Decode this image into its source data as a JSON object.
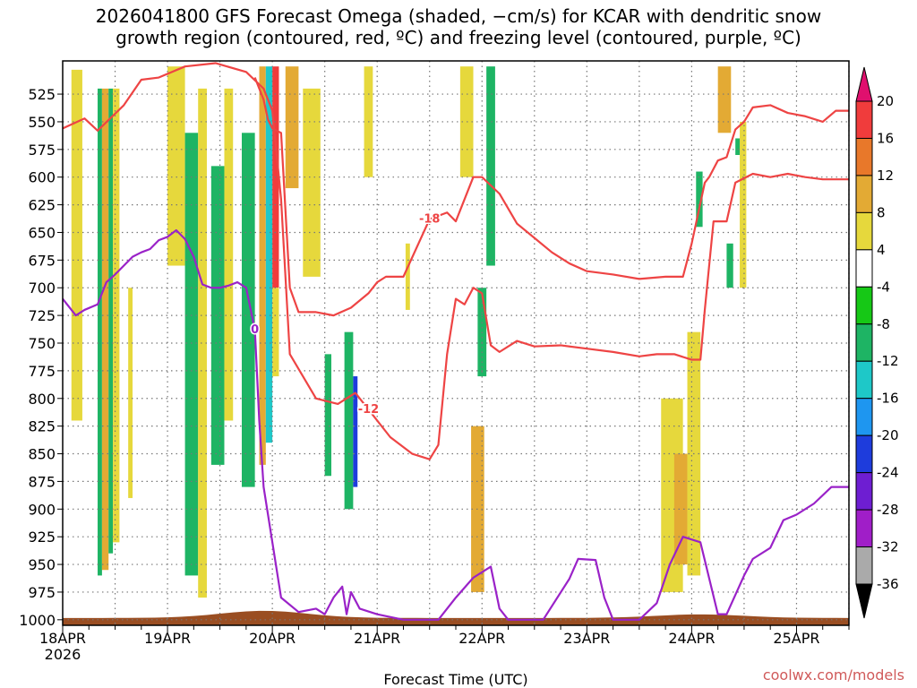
{
  "title": "2026041800 GFS Forecast Omega (shaded, −cm/s) for KCAR with dendritic snow\ngrowth region (contoured, red, ºC) and freezing level (contoured, purple, ºC)",
  "watermark": "coolwx.com/models",
  "chart_data": {
    "type": "heatmap",
    "title": "2026041800 GFS Forecast Omega (shaded, −cm/s) for KCAR with dendritic snow growth region (contoured, red, ºC) and freezing level (contoured, purple, ºC)",
    "xlabel": "Forecast Time (UTC)",
    "ylabel": "",
    "x_range_hours": [
      0,
      180
    ],
    "x_ticks": [
      {
        "hour": 0,
        "label": "18APR",
        "sublabel": "2026"
      },
      {
        "hour": 24,
        "label": "19APR"
      },
      {
        "hour": 48,
        "label": "20APR"
      },
      {
        "hour": 72,
        "label": "21APR"
      },
      {
        "hour": 96,
        "label": "22APR"
      },
      {
        "hour": 120,
        "label": "23APR"
      },
      {
        "hour": 144,
        "label": "24APR"
      },
      {
        "hour": 168,
        "label": "25APR"
      }
    ],
    "y_range_hpa": [
      1005,
      495
    ],
    "y_ticks": [
      "525",
      "550",
      "575",
      "600",
      "625",
      "650",
      "675",
      "700",
      "725",
      "750",
      "775",
      "800",
      "825",
      "850",
      "875",
      "900",
      "925",
      "950",
      "975",
      "1000"
    ],
    "colorbar": {
      "levels": [
        "20",
        "16",
        "12",
        "8",
        "4",
        "-4",
        "-8",
        "-12",
        "-16",
        "-20",
        "-24",
        "-28",
        "-32",
        "-36"
      ],
      "colors": [
        "#e0106e",
        "#f03c3c",
        "#e8782a",
        "#e3aa34",
        "#e6d83c",
        "#ffffff",
        "#16c816",
        "#1eb464",
        "#1ec8c8",
        "#1e96f0",
        "#1e3cdc",
        "#6e1ed2",
        "#a01ec8",
        "#aaaaaa",
        "#000000"
      ]
    },
    "omega_cells": [
      {
        "t0": 2,
        "t1": 4.5,
        "p0": 503,
        "p1": 820,
        "value": 6
      },
      {
        "t0": 8,
        "t1": 9,
        "p0": 520,
        "p1": 960,
        "value": -9
      },
      {
        "t0": 9,
        "t1": 10.5,
        "p0": 520,
        "p1": 955,
        "value": 10
      },
      {
        "t0": 10.5,
        "t1": 11.5,
        "p0": 520,
        "p1": 940,
        "value": -10
      },
      {
        "t0": 11.5,
        "t1": 13,
        "p0": 520,
        "p1": 930,
        "value": 8
      },
      {
        "t0": 15,
        "t1": 16,
        "p0": 700,
        "p1": 890,
        "value": 6
      },
      {
        "t0": 24,
        "t1": 28,
        "p0": 500,
        "p1": 680,
        "value": 5
      },
      {
        "t0": 28,
        "t1": 31,
        "p0": 560,
        "p1": 960,
        "value": -10
      },
      {
        "t0": 31,
        "t1": 33,
        "p0": 520,
        "p1": 980,
        "value": 6
      },
      {
        "t0": 34,
        "t1": 37,
        "p0": 590,
        "p1": 860,
        "value": -9
      },
      {
        "t0": 37,
        "t1": 39,
        "p0": 520,
        "p1": 820,
        "value": 7
      },
      {
        "t0": 41,
        "t1": 44,
        "p0": 560,
        "p1": 880,
        "value": -8
      },
      {
        "t0": 45,
        "t1": 46.5,
        "p0": 500,
        "p1": 860,
        "value": 10
      },
      {
        "t0": 46.5,
        "t1": 48,
        "p0": 500,
        "p1": 840,
        "value": -14
      },
      {
        "t0": 48,
        "t1": 49.5,
        "p0": 500,
        "p1": 700,
        "value": 18
      },
      {
        "t0": 48,
        "t1": 49.5,
        "p0": 700,
        "p1": 780,
        "value": 6
      },
      {
        "t0": 51,
        "t1": 54,
        "p0": 500,
        "p1": 610,
        "value": 9
      },
      {
        "t0": 55,
        "t1": 59,
        "p0": 520,
        "p1": 690,
        "value": 5
      },
      {
        "t0": 60,
        "t1": 61.5,
        "p0": 760,
        "p1": 870,
        "value": -11
      },
      {
        "t0": 64.5,
        "t1": 66.5,
        "p0": 740,
        "p1": 900,
        "value": -9
      },
      {
        "t0": 66.5,
        "t1": 67.5,
        "p0": 780,
        "p1": 880,
        "value": -20
      },
      {
        "t0": 69,
        "t1": 71,
        "p0": 500,
        "p1": 600,
        "value": 5
      },
      {
        "t0": 78.5,
        "t1": 79.5,
        "p0": 660,
        "p1": 720,
        "value": 5
      },
      {
        "t0": 91,
        "t1": 94,
        "p0": 500,
        "p1": 600,
        "value": 5
      },
      {
        "t0": 93.5,
        "t1": 96.5,
        "p0": 825,
        "p1": 975,
        "value": 9
      },
      {
        "t0": 95,
        "t1": 97,
        "p0": 700,
        "p1": 780,
        "value": -9
      },
      {
        "t0": 97,
        "t1": 99,
        "p0": 500,
        "p1": 680,
        "value": -8
      },
      {
        "t0": 137,
        "t1": 142,
        "p0": 800,
        "p1": 975,
        "value": 6
      },
      {
        "t0": 140,
        "t1": 143,
        "p0": 850,
        "p1": 950,
        "value": 9
      },
      {
        "t0": 143,
        "t1": 146,
        "p0": 740,
        "p1": 960,
        "value": 6
      },
      {
        "t0": 145,
        "t1": 146.5,
        "p0": 595,
        "p1": 645,
        "value": -9
      },
      {
        "t0": 150,
        "t1": 153,
        "p0": 500,
        "p1": 560,
        "value": 9
      },
      {
        "t0": 152,
        "t1": 153.5,
        "p0": 660,
        "p1": 700,
        "value": -9
      },
      {
        "t0": 155,
        "t1": 156.5,
        "p0": 550,
        "p1": 700,
        "value": 6
      },
      {
        "t0": 154,
        "t1": 155,
        "p0": 565,
        "p1": 580,
        "value": -9
      }
    ],
    "dgz_contours": [
      {
        "label": "-12",
        "points": [
          [
            0,
            556
          ],
          [
            5,
            547
          ],
          [
            8,
            558
          ],
          [
            14,
            535
          ],
          [
            18,
            512
          ],
          [
            22,
            510
          ],
          [
            28,
            500
          ],
          [
            35,
            497
          ],
          [
            42,
            505
          ],
          [
            46,
            520
          ],
          [
            48,
            540
          ],
          [
            50,
            620
          ],
          [
            52,
            760
          ],
          [
            58,
            800
          ],
          [
            63,
            805
          ],
          [
            67,
            795
          ],
          [
            70,
            810
          ],
          [
            75,
            835
          ],
          [
            80,
            850
          ],
          [
            84,
            855
          ],
          [
            86,
            842
          ],
          [
            88,
            760
          ],
          [
            90,
            710
          ],
          [
            92,
            715
          ],
          [
            94,
            700
          ],
          [
            96,
            705
          ],
          [
            98,
            752
          ],
          [
            100,
            758
          ],
          [
            104,
            748
          ],
          [
            108,
            753
          ],
          [
            114,
            752
          ],
          [
            120,
            755
          ],
          [
            126,
            758
          ],
          [
            132,
            762
          ],
          [
            136,
            760
          ],
          [
            140,
            760
          ],
          [
            144,
            765
          ],
          [
            146,
            765
          ],
          [
            147,
            720
          ],
          [
            149,
            640
          ],
          [
            152,
            640
          ],
          [
            154,
            605
          ],
          [
            158,
            597
          ],
          [
            162,
            600
          ],
          [
            166,
            597
          ],
          [
            170,
            600
          ],
          [
            174,
            602
          ],
          [
            180,
            602
          ]
        ]
      },
      {
        "label": "-18",
        "points": [
          [
            44,
            510
          ],
          [
            46,
            530
          ],
          [
            47,
            548
          ],
          [
            48,
            556
          ],
          [
            50,
            560
          ],
          [
            52,
            700
          ],
          [
            54,
            722
          ],
          [
            58,
            722
          ],
          [
            62,
            725
          ],
          [
            66,
            718
          ],
          [
            70,
            705
          ],
          [
            72,
            695
          ],
          [
            74,
            690
          ],
          [
            78,
            690
          ],
          [
            84,
            638
          ],
          [
            88,
            632
          ],
          [
            90,
            640
          ],
          [
            94,
            600
          ],
          [
            96,
            600
          ],
          [
            100,
            615
          ],
          [
            104,
            642
          ],
          [
            108,
            655
          ],
          [
            112,
            668
          ],
          [
            116,
            678
          ],
          [
            120,
            685
          ],
          [
            126,
            688
          ],
          [
            132,
            692
          ],
          [
            138,
            690
          ],
          [
            142,
            690
          ],
          [
            144,
            660
          ],
          [
            147,
            605
          ],
          [
            148,
            600
          ],
          [
            150,
            585
          ],
          [
            152,
            582
          ],
          [
            154,
            557
          ],
          [
            156,
            550
          ],
          [
            158,
            537
          ],
          [
            162,
            535
          ],
          [
            166,
            542
          ],
          [
            170,
            545
          ],
          [
            174,
            550
          ],
          [
            177,
            540
          ],
          [
            180,
            540
          ]
        ]
      }
    ],
    "freezing_contours": [
      {
        "label": "0",
        "points": [
          [
            0,
            710
          ],
          [
            3,
            725
          ],
          [
            5,
            720
          ],
          [
            8,
            715
          ],
          [
            10,
            695
          ],
          [
            12,
            688
          ],
          [
            14,
            680
          ],
          [
            16,
            672
          ],
          [
            18,
            668
          ],
          [
            20,
            665
          ],
          [
            22,
            657
          ],
          [
            24,
            654
          ],
          [
            26,
            648
          ],
          [
            28,
            656
          ],
          [
            30,
            672
          ],
          [
            32,
            697
          ],
          [
            34,
            700
          ],
          [
            36,
            700
          ],
          [
            38,
            698
          ],
          [
            40,
            695
          ],
          [
            42,
            700
          ],
          [
            44,
            738
          ],
          [
            45,
            820
          ],
          [
            46,
            880
          ],
          [
            48,
            930
          ],
          [
            50,
            980
          ],
          [
            54,
            993
          ],
          [
            58,
            990
          ],
          [
            60,
            995
          ],
          [
            62,
            980
          ],
          [
            64,
            970
          ],
          [
            65,
            995
          ],
          [
            66,
            975
          ],
          [
            68,
            990
          ],
          [
            72,
            995
          ],
          [
            78,
            1000
          ],
          [
            86,
            1000
          ],
          [
            90,
            980
          ],
          [
            94,
            962
          ],
          [
            98,
            952
          ],
          [
            100,
            990
          ],
          [
            102,
            1000
          ],
          [
            110,
            1000
          ],
          [
            116,
            963
          ],
          [
            118,
            945
          ],
          [
            122,
            946
          ],
          [
            124,
            980
          ],
          [
            126,
            1000
          ],
          [
            132,
            1000
          ],
          [
            136,
            985
          ],
          [
            139,
            950
          ],
          [
            142,
            925
          ],
          [
            146,
            930
          ],
          [
            150,
            995
          ],
          [
            152,
            995
          ],
          [
            156,
            960
          ],
          [
            158,
            945
          ],
          [
            162,
            935
          ],
          [
            165,
            910
          ],
          [
            168,
            905
          ],
          [
            172,
            895
          ],
          [
            176,
            880
          ],
          [
            180,
            880
          ]
        ]
      }
    ]
  }
}
